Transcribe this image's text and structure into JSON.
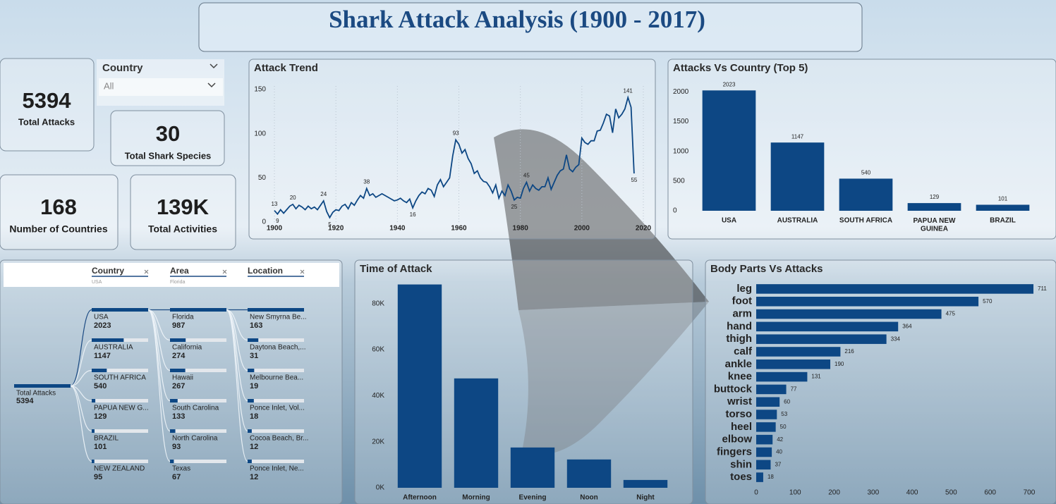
{
  "header": {
    "title": "Shark Attack Analysis (1900 - 2017)"
  },
  "kpis": [
    {
      "value": 5394,
      "label": "Total Attacks"
    },
    {
      "value": 30,
      "label": "Total Shark Species"
    },
    {
      "value": 168,
      "label": "Number of Countries"
    },
    {
      "value": "139K",
      "label": "Total Activities"
    }
  ],
  "slicer": {
    "label": "Country",
    "value": "All"
  },
  "decomposition_tree": {
    "fields": [
      {
        "name": "Country",
        "filter": "USA"
      },
      {
        "name": "Area",
        "filter": "Florida"
      },
      {
        "name": "Location"
      }
    ],
    "root": {
      "label": "Total Attacks",
      "value": 5394
    },
    "levels": [
      [
        {
          "label": "USA",
          "value": 2023
        },
        {
          "label": "AUSTRALIA",
          "value": 1147
        },
        {
          "label": "SOUTH AFRICA",
          "value": 540
        },
        {
          "label": "PAPUA NEW G...",
          "value": 129
        },
        {
          "label": "BRAZIL",
          "value": 101
        },
        {
          "label": "NEW ZEALAND",
          "value": 95
        }
      ],
      [
        {
          "label": "Florida",
          "value": 987
        },
        {
          "label": "California",
          "value": 274
        },
        {
          "label": "Hawaii",
          "value": 267
        },
        {
          "label": "South Carolina",
          "value": 133
        },
        {
          "label": "North Carolina",
          "value": 93
        },
        {
          "label": "Texas",
          "value": 67
        }
      ],
      [
        {
          "label": "New Smyrna Be...",
          "value": 163
        },
        {
          "label": "Daytona Beach,...",
          "value": 31
        },
        {
          "label": "Melbourne Bea...",
          "value": 19
        },
        {
          "label": "Ponce Inlet, Vol...",
          "value": 18
        },
        {
          "label": "Cocoa Beach, Br...",
          "value": 12
        },
        {
          "label": "Ponce Inlet, Ne...",
          "value": 12
        }
      ]
    ]
  },
  "chart_data": [
    {
      "type": "line",
      "title": "Attack Trend",
      "color": "#0d4784",
      "grid": true,
      "x": [
        1900,
        1901,
        1902,
        1903,
        1904,
        1905,
        1906,
        1907,
        1908,
        1909,
        1910,
        1911,
        1912,
        1913,
        1914,
        1915,
        1916,
        1917,
        1918,
        1919,
        1920,
        1921,
        1922,
        1923,
        1924,
        1925,
        1926,
        1927,
        1928,
        1929,
        1930,
        1931,
        1932,
        1933,
        1934,
        1935,
        1936,
        1937,
        1938,
        1939,
        1940,
        1941,
        1942,
        1943,
        1944,
        1945,
        1946,
        1947,
        1948,
        1949,
        1950,
        1951,
        1952,
        1953,
        1954,
        1955,
        1956,
        1957,
        1958,
        1959,
        1960,
        1961,
        1962,
        1963,
        1964,
        1965,
        1966,
        1967,
        1968,
        1969,
        1970,
        1971,
        1972,
        1973,
        1974,
        1975,
        1976,
        1977,
        1978,
        1979,
        1980,
        1981,
        1982,
        1983,
        1984,
        1985,
        1986,
        1987,
        1988,
        1989,
        1990,
        1991,
        1992,
        1993,
        1994,
        1995,
        1996,
        1997,
        1998,
        1999,
        2000,
        2001,
        2002,
        2003,
        2004,
        2005,
        2006,
        2007,
        2008,
        2009,
        2010,
        2011,
        2012,
        2013,
        2014,
        2015,
        2016,
        2017
      ],
      "values": [
        13,
        9,
        14,
        10,
        14,
        18,
        20,
        15,
        19,
        17,
        14,
        18,
        15,
        17,
        14,
        19,
        24,
        12,
        5,
        11,
        14,
        13,
        18,
        20,
        15,
        22,
        19,
        25,
        30,
        27,
        38,
        30,
        32,
        28,
        30,
        32,
        30,
        28,
        26,
        24,
        25,
        27,
        24,
        22,
        26,
        16,
        24,
        30,
        34,
        32,
        38,
        36,
        29,
        42,
        48,
        40,
        45,
        50,
        75,
        93,
        88,
        78,
        82,
        72,
        66,
        55,
        58,
        50,
        46,
        45,
        40,
        33,
        42,
        27,
        35,
        30,
        42,
        35,
        25,
        28,
        27,
        38,
        45,
        35,
        42,
        38,
        36,
        40,
        40,
        50,
        37,
        45,
        53,
        58,
        60,
        76,
        60,
        57,
        62,
        65,
        95,
        90,
        88,
        92,
        92,
        103,
        104,
        112,
        122,
        120,
        101,
        128,
        118,
        122,
        128,
        141,
        130,
        55
      ],
      "xlim": [
        1900,
        2020
      ],
      "xticks": [
        1900,
        1920,
        1940,
        1960,
        1980,
        2000,
        2020
      ],
      "ylim": [
        0,
        150
      ],
      "yticks": [
        0,
        50,
        100,
        150
      ]
    },
    {
      "type": "bar",
      "title": "Attacks Vs Country (Top 5)",
      "color": "#0d4784",
      "data_labels": true,
      "categories": [
        "USA",
        "AUSTRALIA",
        "SOUTH AFRICA",
        "PAPUA NEW GUINEA",
        "BRAZIL"
      ],
      "values": [
        2023,
        1147,
        540,
        129,
        101
      ],
      "ylim": [
        0,
        2050
      ],
      "yticks": [
        0,
        500,
        1000,
        1500,
        2000
      ]
    },
    {
      "type": "bar",
      "title": "Time of Attack",
      "color": "#0d4784",
      "categories": [
        "Afternoon",
        "Morning",
        "Evening",
        "Noon",
        "Night"
      ],
      "values": [
        88300,
        47500,
        17500,
        12300,
        3400
      ],
      "ylim": [
        0,
        90000
      ],
      "yticks": [
        {
          "value": 0,
          "label": "0K"
        },
        {
          "value": 20000,
          "label": "20K"
        },
        {
          "value": 40000,
          "label": "40K"
        },
        {
          "value": 60000,
          "label": "60K"
        },
        {
          "value": 80000,
          "label": "80K"
        }
      ]
    },
    {
      "type": "barh",
      "title": "Body Parts Vs Attacks",
      "color": "#0d4784",
      "data_labels": true,
      "categories": [
        "leg",
        "foot",
        "arm",
        "hand",
        "thigh",
        "calf",
        "ankle",
        "knee",
        "buttock",
        "wrist",
        "torso",
        "heel",
        "elbow",
        "fingers",
        "shin",
        "toes"
      ],
      "values": [
        711,
        570,
        475,
        364,
        334,
        216,
        190,
        131,
        77,
        60,
        53,
        50,
        42,
        40,
        37,
        18
      ],
      "xlim": [
        0,
        720
      ],
      "xticks": [
        0,
        100,
        200,
        300,
        400,
        500,
        600,
        700
      ]
    }
  ]
}
